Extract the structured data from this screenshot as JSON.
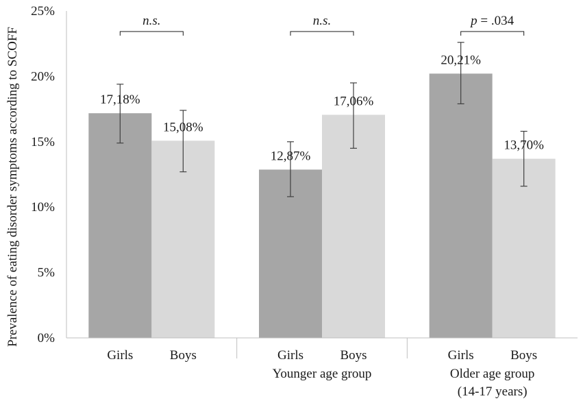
{
  "chart_data": {
    "type": "bar",
    "ylabel": "Prevalence of eating disorder symptoms according to SCOFF",
    "ylim": [
      0,
      25
    ],
    "yticks": [
      "0%",
      "5%",
      "10%",
      "15%",
      "20%",
      "25%"
    ],
    "ytick_values": [
      0,
      5,
      10,
      15,
      20,
      25
    ],
    "grid": false,
    "colors": {
      "girls": "#a6a6a6",
      "boys": "#d9d9d9",
      "axis": "#bfbfbf",
      "errorbar": "#404040"
    },
    "groups": [
      {
        "label": "",
        "label_line2": "",
        "significance": "n.s.",
        "bars": [
          {
            "category": "Girls",
            "value": 17.18,
            "label": "17,18%",
            "err_low": 14.9,
            "err_high": 19.4
          },
          {
            "category": "Boys",
            "value": 15.08,
            "label": "15,08%",
            "err_low": 12.7,
            "err_high": 17.4
          }
        ]
      },
      {
        "label": "Younger age group",
        "label_line2": "",
        "significance": "n.s.",
        "bars": [
          {
            "category": "Girls",
            "value": 12.87,
            "label": "12,87%",
            "err_low": 10.8,
            "err_high": 15.0
          },
          {
            "category": "Boys",
            "value": 17.06,
            "label": "17,06%",
            "err_low": 14.5,
            "err_high": 19.5
          }
        ]
      },
      {
        "label": "Older age group",
        "label_line2": "(14-17 years)",
        "significance": "p = .034",
        "bars": [
          {
            "category": "Girls",
            "value": 20.21,
            "label": "20,21%",
            "err_low": 17.9,
            "err_high": 22.6
          },
          {
            "category": "Boys",
            "value": 13.7,
            "label": "13,70%",
            "err_low": 11.6,
            "err_high": 15.8
          }
        ]
      }
    ]
  }
}
